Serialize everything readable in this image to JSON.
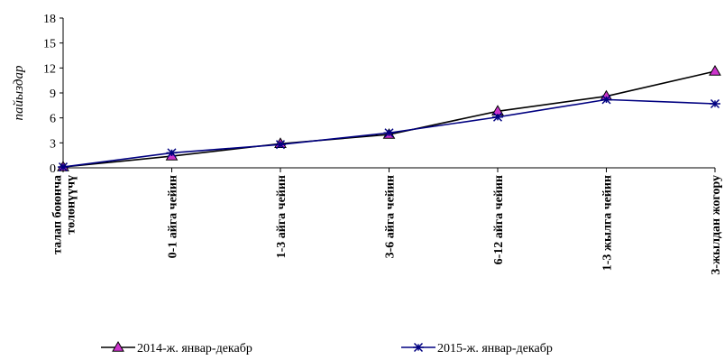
{
  "chart_data": {
    "type": "line",
    "ylabel": "пайыздар",
    "xlabel": "",
    "title": "",
    "ylim": [
      0,
      18
    ],
    "yticks": [
      0,
      3,
      6,
      9,
      12,
      15,
      18
    ],
    "categories": [
      [
        "талап боюнча",
        "төлөнүүчү"
      ],
      [
        "0-1 айга чейин"
      ],
      [
        "1-3 айга чейин"
      ],
      [
        "3-6 айга чейин"
      ],
      [
        "6-12 айга чейин"
      ],
      [
        "1-3 жылга чейин"
      ],
      [
        "3-жылдан жогору"
      ]
    ],
    "series": [
      {
        "name": "2014-ж. январ-декабр",
        "values": [
          0.1,
          1.4,
          2.9,
          4.0,
          6.8,
          8.6,
          11.6
        ],
        "color": "#000000",
        "marker": "triangle",
        "marker_color": "#cc33cc"
      },
      {
        "name": "2015-ж. январ-декабр",
        "values": [
          0.1,
          1.8,
          2.8,
          4.2,
          6.1,
          8.2,
          7.7
        ],
        "color": "#000080",
        "marker": "star",
        "marker_color": "#000080"
      }
    ],
    "legend_position": "bottom",
    "grid": false
  }
}
